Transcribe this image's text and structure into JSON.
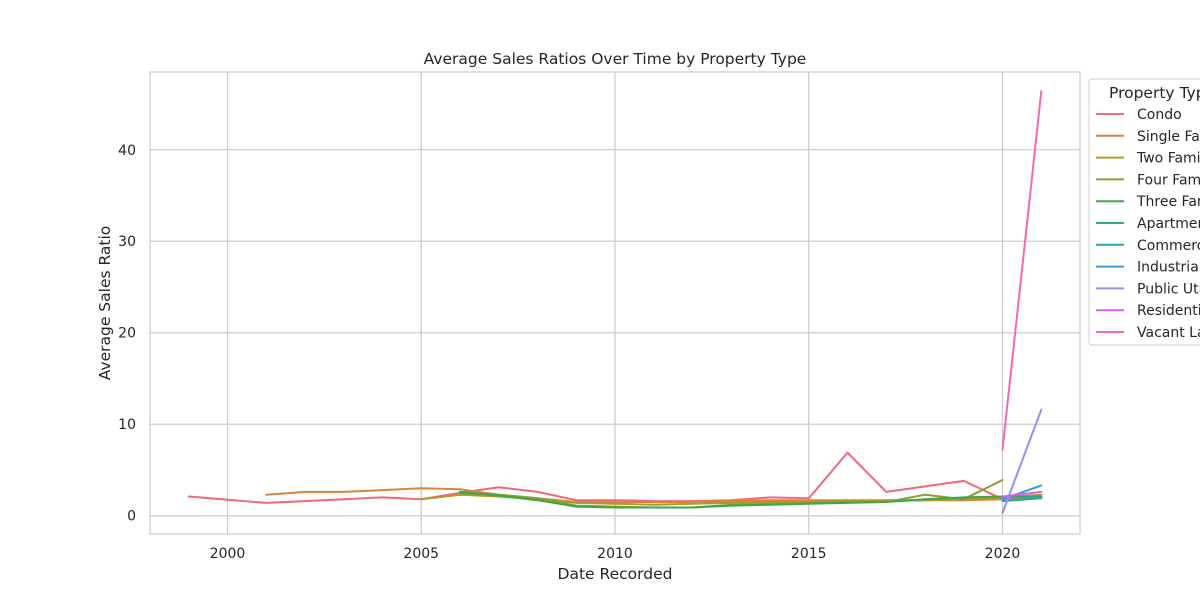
{
  "chart_data": {
    "type": "line",
    "title": "Average Sales Ratios Over Time by Property Type",
    "xlabel": "Date Recorded",
    "ylabel": "Average Sales Ratio",
    "xlim": [
      1998,
      2022
    ],
    "ylim": [
      -2,
      48.5
    ],
    "xticks": [
      2000,
      2005,
      2010,
      2015,
      2020
    ],
    "yticks": [
      0,
      10,
      20,
      30,
      40
    ],
    "grid": true,
    "legend": {
      "title": "Property Type",
      "placement": "outside-right"
    },
    "series": [
      {
        "name": "Condo",
        "color": "#f0697a",
        "x": [
          1999,
          2001,
          2002,
          2003,
          2004,
          2005,
          2006,
          2007,
          2008,
          2009,
          2010,
          2011,
          2012,
          2013,
          2014,
          2015,
          2016,
          2017,
          2018,
          2019,
          2020,
          2021
        ],
        "y": [
          2.1,
          1.4,
          1.6,
          1.8,
          2.0,
          1.8,
          2.5,
          3.1,
          2.6,
          1.7,
          1.7,
          1.6,
          1.6,
          1.7,
          2.0,
          1.9,
          6.9,
          2.6,
          3.2,
          3.8,
          1.8,
          2.3
        ]
      },
      {
        "name": "Single Family",
        "color": "#d8843a",
        "x": [
          2001,
          2002,
          2003,
          2004,
          2005,
          2006,
          2007,
          2008,
          2009,
          2010,
          2011,
          2012,
          2013,
          2014,
          2015,
          2016,
          2017,
          2018,
          2019,
          2020,
          2021
        ],
        "y": [
          2.3,
          2.6,
          2.6,
          2.8,
          3.0,
          2.9,
          2.3,
          1.9,
          1.5,
          1.5,
          1.5,
          1.5,
          1.6,
          1.7,
          1.7,
          1.7,
          1.7,
          1.7,
          1.7,
          1.8,
          2.0
        ]
      },
      {
        "name": "Two Family",
        "color": "#b09a2a",
        "x": [
          2005,
          2006,
          2007,
          2008,
          2009,
          2010,
          2011,
          2012,
          2013,
          2014,
          2015,
          2016,
          2017,
          2018,
          2019,
          2020,
          2021
        ],
        "y": [
          1.8,
          2.3,
          2.1,
          1.8,
          1.4,
          1.3,
          1.2,
          1.3,
          1.4,
          1.5,
          1.5,
          1.6,
          1.6,
          1.7,
          1.8,
          2.0,
          2.3
        ]
      },
      {
        "name": "Four Family",
        "color": "#88a033",
        "x": [
          2006,
          2007,
          2008,
          2009,
          2010,
          2011,
          2012,
          2013,
          2014,
          2015,
          2016,
          2017,
          2018,
          2019,
          2020
        ],
        "y": [
          2.4,
          2.3,
          1.9,
          1.1,
          1.0,
          0.9,
          0.9,
          1.2,
          1.3,
          1.4,
          1.5,
          1.5,
          2.3,
          1.8,
          3.9
        ]
      },
      {
        "name": "Three Family",
        "color": "#3aa74a",
        "x": [
          2006,
          2007,
          2008,
          2009,
          2010,
          2011,
          2012,
          2013,
          2014,
          2015,
          2016,
          2017,
          2018,
          2019,
          2020,
          2021
        ],
        "y": [
          2.6,
          2.2,
          1.7,
          1.0,
          0.9,
          0.9,
          0.9,
          1.1,
          1.2,
          1.3,
          1.4,
          1.5,
          1.8,
          2.0,
          2.1,
          2.1
        ]
      },
      {
        "name": "Apartments",
        "color": "#30a88a",
        "x": [
          2020,
          2021
        ],
        "y": [
          2.0,
          2.0
        ]
      },
      {
        "name": "Commercial",
        "color": "#31a3a8",
        "x": [
          2020,
          2021
        ],
        "y": [
          1.6,
          1.9
        ]
      },
      {
        "name": "Industrial",
        "color": "#3a9fd6",
        "x": [
          2020,
          2021
        ],
        "y": [
          1.8,
          3.3
        ]
      },
      {
        "name": "Public Utility",
        "color": "#9492ee",
        "x": [
          2020,
          2021
        ],
        "y": [
          0.3,
          11.6
        ]
      },
      {
        "name": "Residential",
        "color": "#db5ee8",
        "x": [
          2020,
          2021
        ],
        "y": [
          2.1,
          2.6
        ]
      },
      {
        "name": "Vacant Land",
        "color": "#f268bd",
        "x": [
          2020,
          2021
        ],
        "y": [
          7.2,
          46.4
        ]
      }
    ]
  },
  "legend_labels": [
    "Condo",
    "Single Family",
    "Two Family",
    "Four Family",
    "Three Family",
    "Apartments",
    "Commercial",
    "Industrial",
    "Public Utility",
    "Residential",
    "Vacant Land"
  ]
}
